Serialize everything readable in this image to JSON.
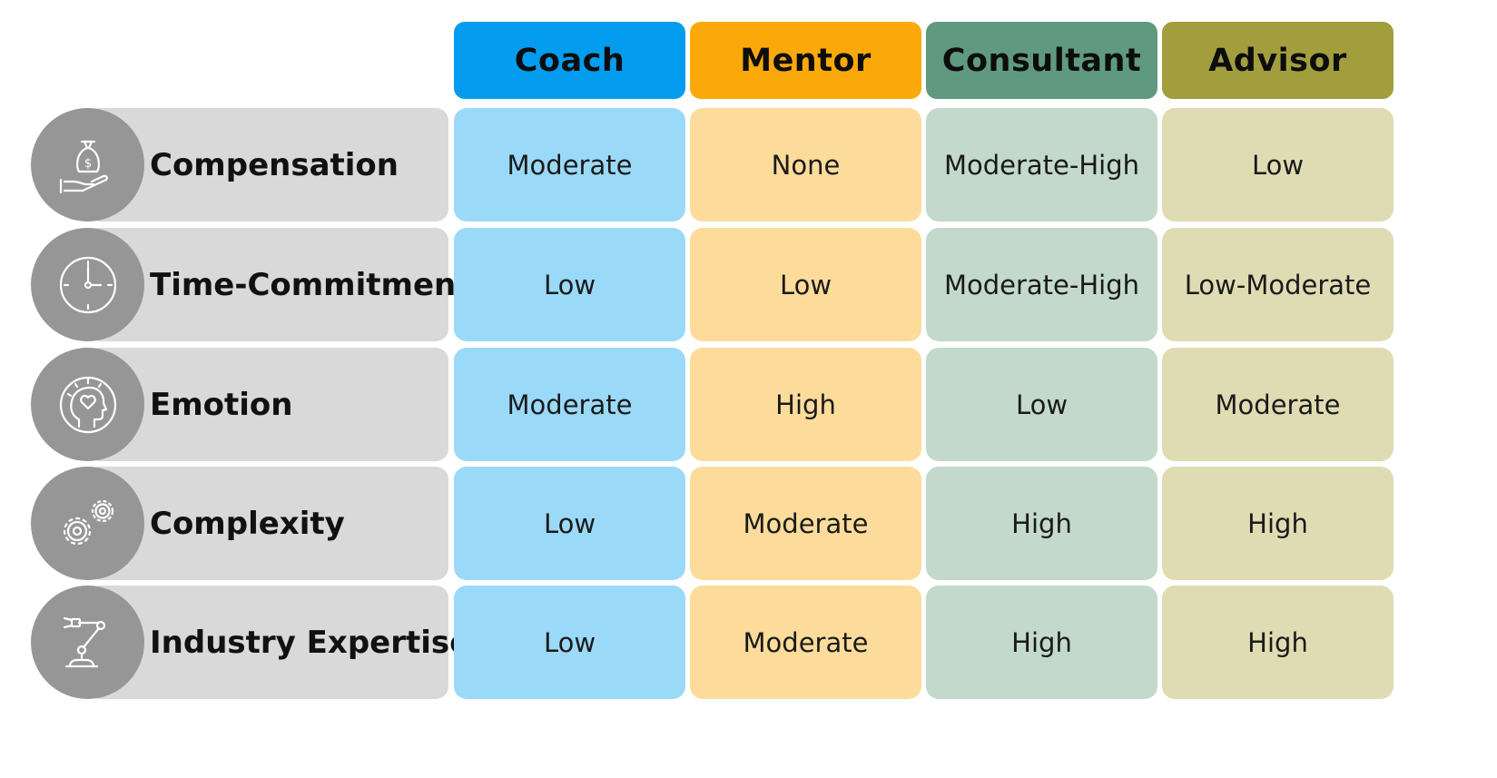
{
  "columns": [
    {
      "label": "Coach",
      "color": "#049cee",
      "light": "#9bd9f8"
    },
    {
      "label": "Mentor",
      "color": "#fba90a",
      "light": "#fddc9b"
    },
    {
      "label": "Consultant",
      "color": "#5f9a80",
      "light": "#c3d9cc"
    },
    {
      "label": "Advisor",
      "color": "#a39e3d",
      "light": "#dfdcb3"
    }
  ],
  "rows": [
    {
      "label": "Compensation",
      "icon": "money-bag-hand-icon",
      "values": [
        "Moderate",
        "None",
        "Moderate-High",
        "Low"
      ]
    },
    {
      "label": "Time-Commitment",
      "icon": "clock-icon",
      "values": [
        "Low",
        "Low",
        "Moderate-High",
        "Low-Moderate"
      ]
    },
    {
      "label": "Emotion",
      "icon": "head-heart-icon",
      "values": [
        "Moderate",
        "High",
        "Low",
        "Moderate"
      ]
    },
    {
      "label": "Complexity",
      "icon": "gears-icon",
      "values": [
        "Low",
        "Moderate",
        "High",
        "High"
      ]
    },
    {
      "label": "Industry Expertise",
      "icon": "robot-arm-icon",
      "values": [
        "Low",
        "Moderate",
        "High",
        "High"
      ]
    }
  ]
}
